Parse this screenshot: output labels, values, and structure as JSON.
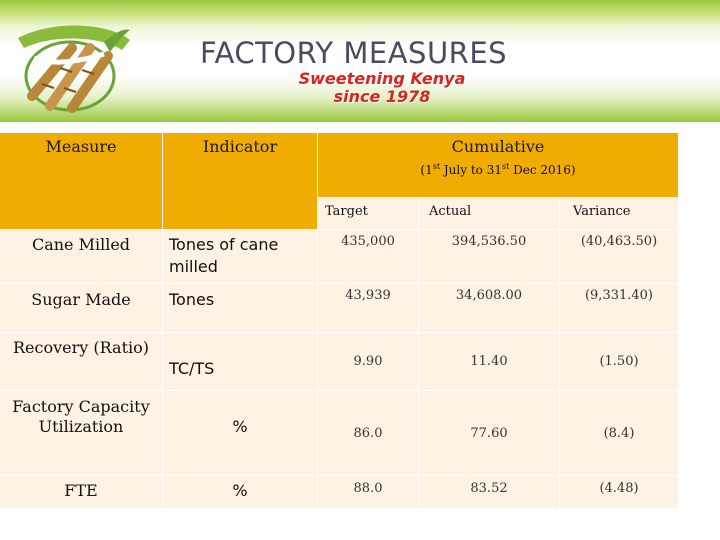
{
  "header": {
    "title": "FACTORY MEASURES",
    "slogan_line1": "Sweetening Kenya",
    "slogan_line2": "since 1978",
    "logo_icon": "sugarcane-logo-icon"
  },
  "table": {
    "col_measure": "Measure",
    "col_indicator": "Indicator",
    "col_cumulative": "Cumulative",
    "period": {
      "open": "(1",
      "st": "st",
      "middle": " July to  31",
      "end": " Dec 2016)"
    },
    "col_target": "Target",
    "col_actual": "Actual",
    "col_variance": "Variance",
    "rows": [
      {
        "measure": "Cane Milled",
        "indicator_line1": "Tones of cane",
        "indicator_line2": "milled",
        "target": "435,000",
        "actual": "394,536.50",
        "variance": "(40,463.50)"
      },
      {
        "measure": "Sugar Made",
        "indicator": "Tones",
        "target": "43,939",
        "actual": "34,608.00",
        "variance": "(9,331.40)"
      },
      {
        "measure": "Recovery (Ratio)",
        "indicator": "TC/TS",
        "target": "9.90",
        "actual": "11.40",
        "variance": "(1.50)"
      },
      {
        "measure_line1": "Factory Capacity",
        "measure_line2": "Utilization",
        "indicator": "%",
        "target": "86.0",
        "actual": "77.60",
        "variance": "(8.4)"
      },
      {
        "measure": "FTE",
        "indicator": "%",
        "target": "88.0",
        "actual": "83.52",
        "variance": "(4.48)"
      }
    ]
  },
  "colors": {
    "header_bg": "#f0ac00",
    "row_bg": "#fdf2e3",
    "slogan": "#d7261e",
    "banner_green": "#9dc53f"
  }
}
